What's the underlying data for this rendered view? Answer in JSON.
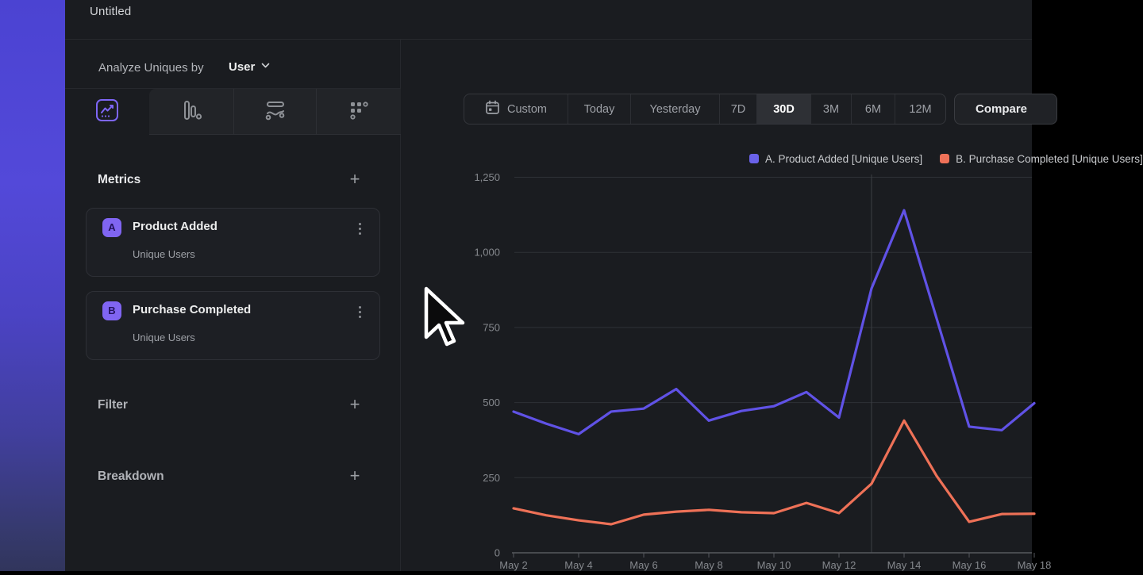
{
  "window": {
    "title": "Untitled"
  },
  "sidebar": {
    "analyze_label": "Analyze Uniques by",
    "analyze_value": "User",
    "tab_icons": [
      "line-chart",
      "funnel-bars",
      "flow-waves",
      "dots-grid"
    ],
    "selected_tab": "line-chart",
    "metrics": {
      "title": "Metrics",
      "add_icon": "plus",
      "items": [
        {
          "badge": "A",
          "name": "Product Added",
          "subtitle": "Unique Users",
          "menu_icon": "kebab-vertical"
        },
        {
          "badge": "B",
          "name": "Purchase Completed",
          "subtitle": "Unique Users",
          "menu_icon": "kebab-vertical"
        }
      ]
    },
    "filter": {
      "title": "Filter",
      "add_icon": "plus"
    },
    "breakdown": {
      "title": "Breakdown",
      "add_icon": "plus"
    }
  },
  "toolbar": {
    "custom_icon": "calendar",
    "ranges": [
      "Custom",
      "Today",
      "Yesterday",
      "7D",
      "30D",
      "3M",
      "6M",
      "12M"
    ],
    "selected_range": "30D",
    "compare_label": "Compare"
  },
  "legend": [
    {
      "label": "A. Product Added [Unique Users]",
      "color": "#6a62e9"
    },
    {
      "label": "B. Purchase Completed [Unique Users]",
      "color": "#ee7158"
    }
  ],
  "cursor_icon": "arrow-pointer",
  "chart_data": {
    "type": "line",
    "title": "",
    "x": [
      "May 2",
      "May 3",
      "May 4",
      "May 5",
      "May 6",
      "May 7",
      "May 8",
      "May 9",
      "May 10",
      "May 11",
      "May 12",
      "May 13",
      "May 14",
      "May 15",
      "May 16",
      "May 17",
      "May 18"
    ],
    "x_label_every": 2,
    "series": [
      {
        "name": "A. Product Added [Unique Users]",
        "color": "#6052e6",
        "values": [
          470,
          430,
          395,
          470,
          480,
          545,
          440,
          472,
          488,
          535,
          450,
          880,
          1140,
          780,
          420,
          408,
          498
        ]
      },
      {
        "name": "B. Purchase Completed [Unique Users]",
        "color": "#ee7157",
        "values": [
          148,
          125,
          108,
          95,
          127,
          137,
          143,
          135,
          132,
          166,
          132,
          230,
          440,
          256,
          103,
          129,
          130
        ]
      }
    ],
    "ylim": [
      0,
      1250
    ],
    "yticks": [
      0,
      250,
      500,
      750,
      1000,
      1250
    ],
    "ytick_labels": [
      "0",
      "250",
      "500",
      "750",
      "1,000",
      "1,250"
    ],
    "grid": "horizontal",
    "vertical_marker_x": "May 13",
    "legend_position": "top-right"
  }
}
